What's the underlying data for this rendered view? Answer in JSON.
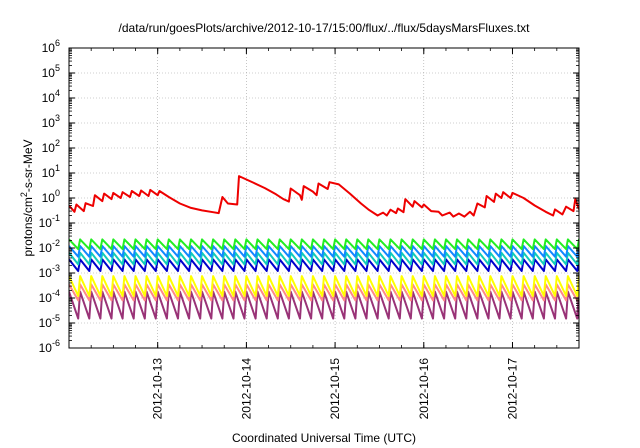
{
  "chart_data": {
    "type": "line",
    "title": "/data/run/goesPlots/archive/2012-10-17/15:00/flux/../flux/5daysMarsFluxes.txt",
    "xlabel": "Coordinated Universal Time (UTC)",
    "ylabel": {
      "prefix": "protons/cm",
      "sup": "2",
      "suffix": "-s-sr-MeV"
    },
    "yscale": "log",
    "ylim": [
      1e-06,
      1000000.0
    ],
    "y_ticks": [
      {
        "base": "10",
        "exp": "-6",
        "value": -6
      },
      {
        "base": "10",
        "exp": "-5",
        "value": -5
      },
      {
        "base": "10",
        "exp": "-4",
        "value": -4
      },
      {
        "base": "10",
        "exp": "-3",
        "value": -3
      },
      {
        "base": "10",
        "exp": "-2",
        "value": -2
      },
      {
        "base": "10",
        "exp": "-1",
        "value": -1
      },
      {
        "base": "10",
        "exp": "0",
        "value": 0
      },
      {
        "base": "10",
        "exp": "1",
        "value": 1
      },
      {
        "base": "10",
        "exp": "2",
        "value": 2
      },
      {
        "base": "10",
        "exp": "3",
        "value": 3
      },
      {
        "base": "10",
        "exp": "4",
        "value": 4
      },
      {
        "base": "10",
        "exp": "5",
        "value": 5
      },
      {
        "base": "10",
        "exp": "6",
        "value": 6
      }
    ],
    "xlim": [
      "2012-10-12T00:00",
      "2012-10-17T18:00"
    ],
    "x_ticks": [
      "2012-10-13",
      "2012-10-14",
      "2012-10-15",
      "2012-10-16",
      "2012-10-17"
    ],
    "grid": true,
    "legend": "none",
    "series": [
      {
        "color": "#ee0000",
        "kind": "points",
        "points": [
          [
            "2012-10-12T00:00",
            0.5
          ],
          [
            "2012-10-12T01:30",
            0.28
          ],
          [
            "2012-10-12T02:00",
            0.55
          ],
          [
            "2012-10-12T04:00",
            0.3
          ],
          [
            "2012-10-12T04:30",
            0.62
          ],
          [
            "2012-10-12T06:30",
            0.48
          ],
          [
            "2012-10-12T07:00",
            1.3
          ],
          [
            "2012-10-12T09:00",
            0.75
          ],
          [
            "2012-10-12T09:30",
            1.5
          ],
          [
            "2012-10-12T11:30",
            0.9
          ],
          [
            "2012-10-12T12:00",
            1.6
          ],
          [
            "2012-10-12T14:00",
            1.0
          ],
          [
            "2012-10-12T14:30",
            1.7
          ],
          [
            "2012-10-12T16:30",
            1.1
          ],
          [
            "2012-10-12T17:00",
            1.9
          ],
          [
            "2012-10-12T19:00",
            1.2
          ],
          [
            "2012-10-12T19:30",
            2.0
          ],
          [
            "2012-10-12T21:30",
            1.2
          ],
          [
            "2012-10-12T22:00",
            2.1
          ],
          [
            "2012-10-13T00:00",
            1.3
          ],
          [
            "2012-10-13T00:30",
            1.9
          ],
          [
            "2012-10-13T03:00",
            1.1
          ],
          [
            "2012-10-13T06:00",
            0.6
          ],
          [
            "2012-10-13T09:00",
            0.4
          ],
          [
            "2012-10-13T12:00",
            0.32
          ],
          [
            "2012-10-13T15:00",
            0.27
          ],
          [
            "2012-10-13T16:30",
            0.25
          ],
          [
            "2012-10-13T17:30",
            1.1
          ],
          [
            "2012-10-13T19:00",
            0.6
          ],
          [
            "2012-10-13T21:30",
            0.55
          ],
          [
            "2012-10-13T22:00",
            7.5
          ],
          [
            "2012-10-14T02:00",
            4.0
          ],
          [
            "2012-10-14T05:00",
            2.5
          ],
          [
            "2012-10-14T08:00",
            1.4
          ],
          [
            "2012-10-14T10:00",
            0.9
          ],
          [
            "2012-10-14T11:30",
            0.72
          ],
          [
            "2012-10-14T12:00",
            2.4
          ],
          [
            "2012-10-14T14:30",
            1.3
          ],
          [
            "2012-10-14T15:00",
            0.85
          ],
          [
            "2012-10-14T15:30",
            3.0
          ],
          [
            "2012-10-14T18:00",
            1.8
          ],
          [
            "2012-10-14T19:00",
            1.3
          ],
          [
            "2012-10-14T19:30",
            3.8
          ],
          [
            "2012-10-14T22:00",
            2.3
          ],
          [
            "2012-10-14T22:30",
            4.3
          ],
          [
            "2012-10-15T01:00",
            3.5
          ],
          [
            "2012-10-15T04:00",
            1.5
          ],
          [
            "2012-10-15T07:00",
            0.6
          ],
          [
            "2012-10-15T09:00",
            0.35
          ],
          [
            "2012-10-15T11:30",
            0.2
          ],
          [
            "2012-10-15T13:00",
            0.26
          ],
          [
            "2012-10-15T14:00",
            0.2
          ],
          [
            "2012-10-15T15:00",
            0.34
          ],
          [
            "2012-10-15T16:30",
            0.25
          ],
          [
            "2012-10-15T17:00",
            0.38
          ],
          [
            "2012-10-15T18:30",
            0.27
          ],
          [
            "2012-10-15T19:00",
            0.9
          ],
          [
            "2012-10-15T21:00",
            0.45
          ],
          [
            "2012-10-15T21:30",
            0.75
          ],
          [
            "2012-10-15T23:30",
            0.42
          ],
          [
            "2012-10-16T00:00",
            0.55
          ],
          [
            "2012-10-16T02:00",
            0.3
          ],
          [
            "2012-10-16T04:00",
            0.28
          ],
          [
            "2012-10-16T05:00",
            0.2
          ],
          [
            "2012-10-16T07:00",
            0.26
          ],
          [
            "2012-10-16T08:00",
            0.18
          ],
          [
            "2012-10-16T09:30",
            0.24
          ],
          [
            "2012-10-16T11:00",
            0.18
          ],
          [
            "2012-10-16T12:30",
            0.28
          ],
          [
            "2012-10-16T13:30",
            0.2
          ],
          [
            "2012-10-16T14:30",
            0.6
          ],
          [
            "2012-10-16T16:30",
            0.42
          ],
          [
            "2012-10-16T17:00",
            1.2
          ],
          [
            "2012-10-16T19:00",
            0.7
          ],
          [
            "2012-10-16T19:30",
            1.5
          ],
          [
            "2012-10-16T21:00",
            1.0
          ],
          [
            "2012-10-16T21:30",
            1.7
          ],
          [
            "2012-10-16T23:30",
            1.0
          ],
          [
            "2012-10-17T00:00",
            1.6
          ],
          [
            "2012-10-17T03:00",
            1.0
          ],
          [
            "2012-10-17T06:00",
            0.5
          ],
          [
            "2012-10-17T09:00",
            0.28
          ],
          [
            "2012-10-17T11:00",
            0.2
          ],
          [
            "2012-10-17T11:30",
            0.35
          ],
          [
            "2012-10-17T13:30",
            0.22
          ],
          [
            "2012-10-17T14:30",
            0.45
          ],
          [
            "2012-10-17T16:30",
            0.3
          ],
          [
            "2012-10-17T17:00",
            0.9
          ],
          [
            "2012-10-17T18:00",
            0.35
          ]
        ]
      },
      {
        "color": "#22ee22",
        "kind": "sawtooth",
        "period_hours": 3,
        "low": 0.009,
        "high": 0.022
      },
      {
        "color": "#1188ff",
        "kind": "sawtooth",
        "period_hours": 3,
        "low": 0.0045,
        "high": 0.012
      },
      {
        "color": "#11ccbb",
        "kind": "sawtooth",
        "period_hours": 3,
        "low": 0.0022,
        "high": 0.0065
      },
      {
        "color": "#0000cc",
        "kind": "sawtooth",
        "period_hours": 3,
        "low": 0.0012,
        "high": 0.0035
      },
      {
        "color": "#ffff00",
        "kind": "sawtooth",
        "period_hours": 3,
        "low": 0.00012,
        "high": 0.00075
      },
      {
        "color": "#ff8888",
        "kind": "sawtooth",
        "period_hours": 3,
        "low": 8e-05,
        "high": 0.00035
      },
      {
        "color": "#993377",
        "kind": "sawtooth",
        "period_hours": 3,
        "low": 1.5e-05,
        "high": 0.00018
      }
    ]
  }
}
